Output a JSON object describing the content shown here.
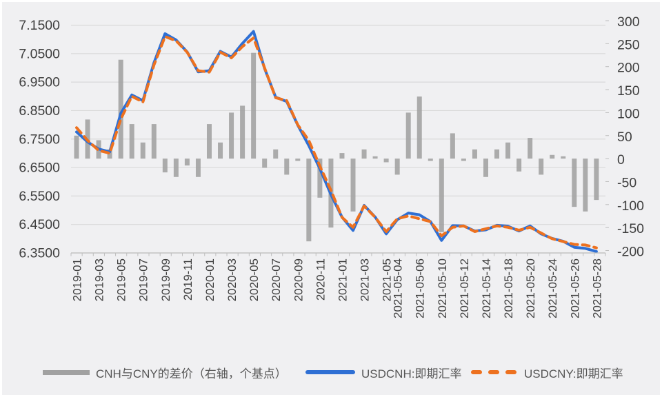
{
  "page": {
    "background": "#f0f0f2",
    "frame_color": "#ffffff"
  },
  "colors": {
    "bar": "#a1a1a1",
    "cnh_line": "#2e6fd4",
    "cny_line": "#ed711f",
    "gridline": "#d9d9d9",
    "axis_line": "#bdbdbd",
    "axis_text": "#3f3f3f",
    "legend_text": "#565656"
  },
  "legend": {
    "items": [
      {
        "label": "CNH与CNY的差价（右轴，个基点）",
        "swatch": "bar"
      },
      {
        "label": "USDCNH:即期汇率",
        "swatch": "solid-line"
      },
      {
        "label": "USDCNY:即期汇率",
        "swatch": "dashed-line"
      }
    ]
  },
  "chart_data": {
    "type": "combo-bar-line",
    "title": "",
    "grid": "horizontal",
    "legend_position": "bottom",
    "categories": [
      "2019-01",
      "2019-02",
      "2019-03",
      "2019-04",
      "2019-05",
      "2019-06",
      "2019-07",
      "2019-08",
      "2019-09",
      "2019-10",
      "2019-11",
      "2019-12",
      "2020-01",
      "2020-02",
      "2020-03",
      "2020-04",
      "2020-05",
      "2020-06",
      "2020-07",
      "2020-08",
      "2020-09",
      "2020-10",
      "2020-11",
      "2020-12",
      "2021-01",
      "2021-02",
      "2021-03",
      "2021-04",
      "2021-05",
      "2021-05-04",
      "2021-05-05",
      "2021-05-06",
      "2021-05-07",
      "2021-05-10",
      "2021-05-11",
      "2021-05-12",
      "2021-05-13",
      "2021-05-14",
      "2021-05-17",
      "2021-05-18",
      "2021-05-19",
      "2021-05-20",
      "2021-05-21",
      "2021-05-24",
      "2021-05-25",
      "2021-05-26",
      "2021-05-27",
      "2021-05-28"
    ],
    "x_labeled_indices": [
      0,
      2,
      4,
      6,
      8,
      10,
      12,
      14,
      16,
      18,
      20,
      22,
      24,
      26,
      28,
      29,
      31,
      33,
      35,
      37,
      39,
      41,
      43,
      45,
      47
    ],
    "left_axis": {
      "min": 6.35,
      "max": 7.15,
      "ticks": [
        "7.1500",
        "7.0500",
        "6.9500",
        "6.8500",
        "6.7500",
        "6.6500",
        "6.5500",
        "6.4500",
        "6.3500"
      ]
    },
    "right_axis": {
      "min": -200,
      "max": 300,
      "ticks": [
        "300",
        "250",
        "200",
        "150",
        "100",
        "50",
        "0",
        "-50",
        "-100",
        "-150",
        "-200"
      ]
    },
    "series": [
      {
        "name": "CNH与CNY的差价（右轴，个基点）",
        "type": "bar",
        "axis": "right",
        "values": [
          50,
          85,
          40,
          20,
          215,
          75,
          35,
          75,
          -30,
          -40,
          -15,
          -40,
          75,
          35,
          100,
          115,
          230,
          -20,
          20,
          -35,
          -5,
          -180,
          -85,
          -150,
          12,
          -115,
          20,
          5,
          -8,
          -35,
          100,
          135,
          -5,
          -160,
          55,
          -5,
          20,
          -40,
          20,
          35,
          -28,
          45,
          -35,
          8,
          5,
          -105,
          -115,
          -90
        ]
      },
      {
        "name": "USDCNH:即期汇率",
        "type": "line",
        "style": "solid",
        "axis": "left",
        "values": [
          6.775,
          6.74,
          6.715,
          6.705,
          6.84,
          6.905,
          6.885,
          7.018,
          7.12,
          7.098,
          7.056,
          6.986,
          6.99,
          7.058,
          7.038,
          7.086,
          7.128,
          6.998,
          6.897,
          6.882,
          6.799,
          6.727,
          6.646,
          6.555,
          6.476,
          6.429,
          6.517,
          6.476,
          6.417,
          6.467,
          6.49,
          6.484,
          6.46,
          6.394,
          6.446,
          6.445,
          6.427,
          6.431,
          6.447,
          6.444,
          6.427,
          6.445,
          6.417,
          6.401,
          6.391,
          6.37,
          6.366,
          6.355
        ]
      },
      {
        "name": "USDCNY:即期汇率",
        "type": "line",
        "style": "dashed",
        "axis": "left",
        "values": [
          6.79,
          6.745,
          6.71,
          6.7,
          6.82,
          6.9,
          6.88,
          7.01,
          7.11,
          7.095,
          7.055,
          6.99,
          6.985,
          7.055,
          7.035,
          7.075,
          7.105,
          7.0,
          6.895,
          6.885,
          6.8,
          6.745,
          6.655,
          6.57,
          6.475,
          6.44,
          6.515,
          6.475,
          6.425,
          6.47,
          6.48,
          6.47,
          6.46,
          6.41,
          6.44,
          6.445,
          6.425,
          6.435,
          6.445,
          6.44,
          6.43,
          6.44,
          6.42,
          6.4,
          6.39,
          6.38,
          6.378,
          6.368
        ]
      }
    ]
  }
}
